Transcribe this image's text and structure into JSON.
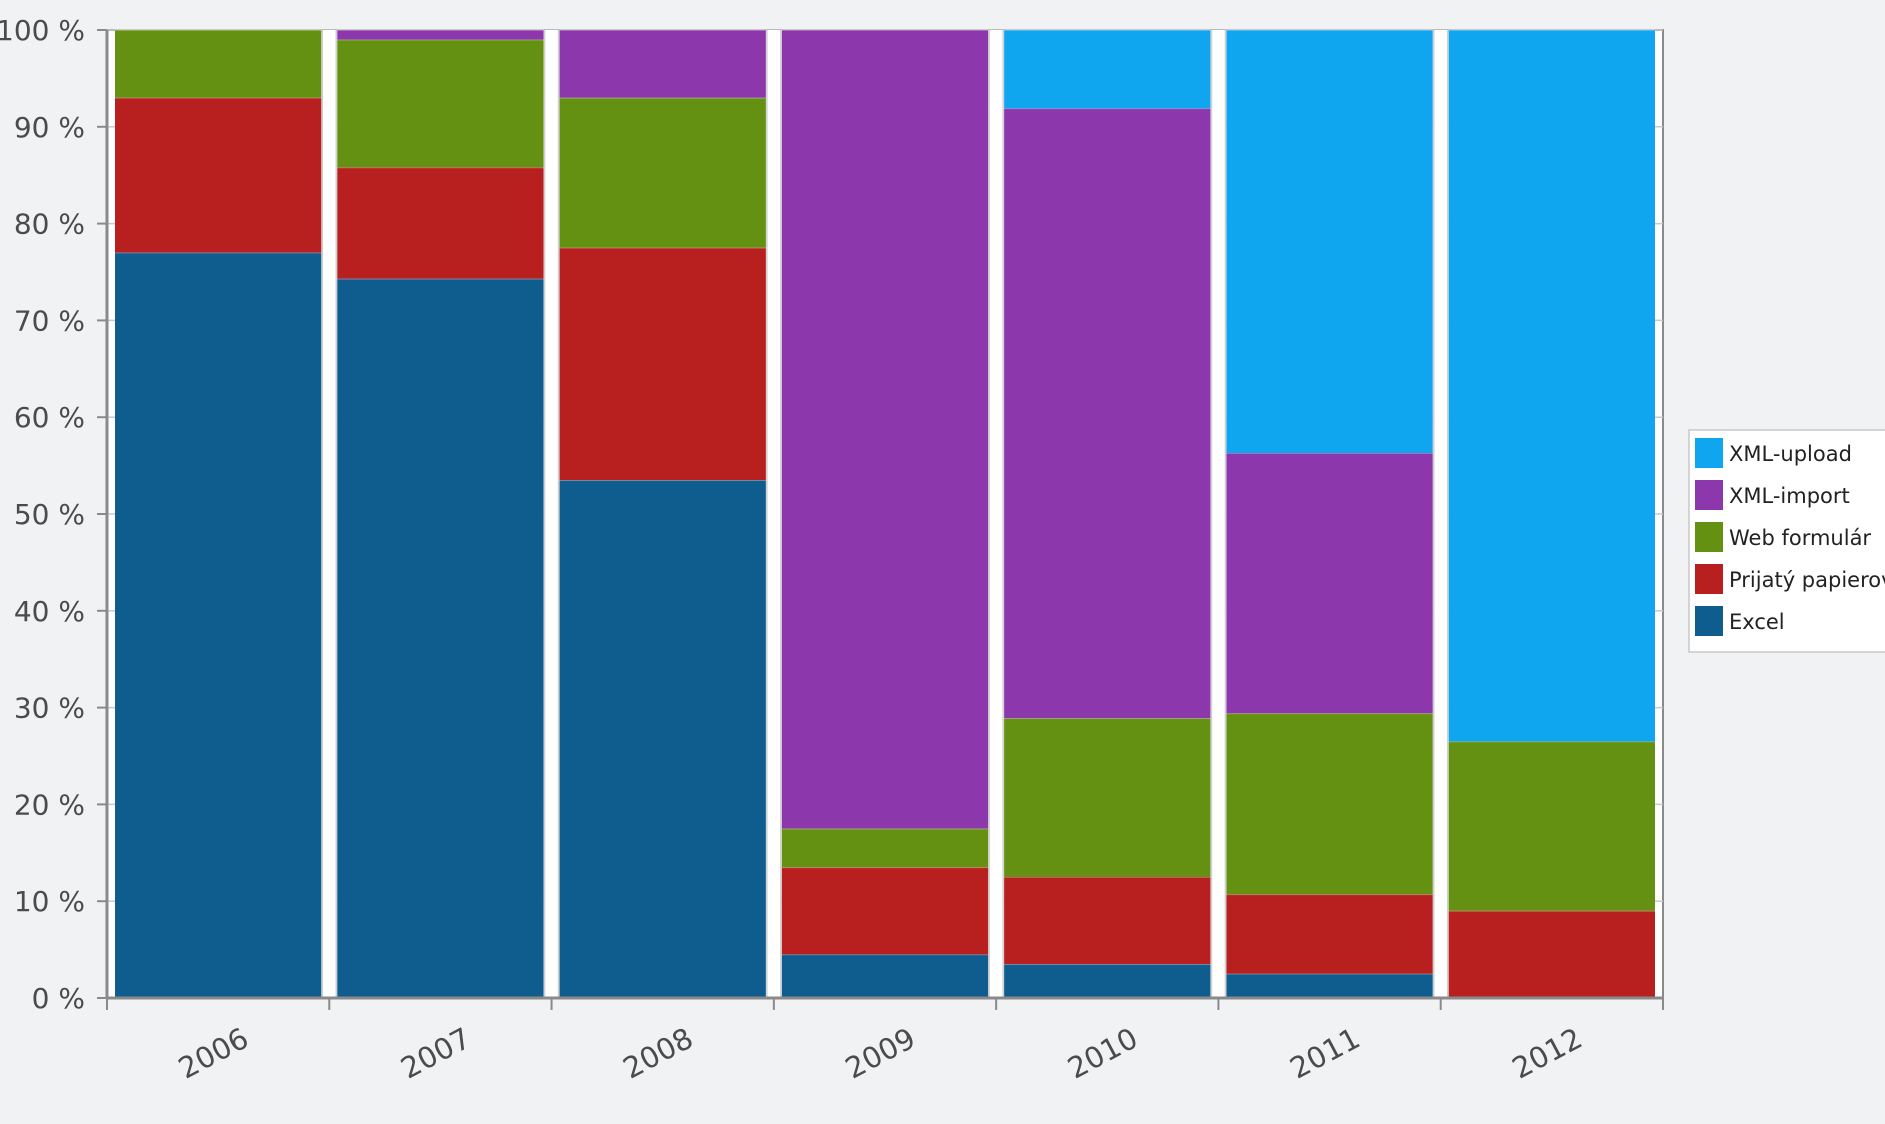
{
  "chart_data": {
    "type": "bar",
    "stacked": true,
    "normalized": true,
    "categories": [
      "2006",
      "2007",
      "2008",
      "2009",
      "2010",
      "2011",
      "2012"
    ],
    "y_ticks": [
      "0 %",
      "10 %",
      "20 %",
      "30 %",
      "40 %",
      "50 %",
      "60 %",
      "70 %",
      "80 %",
      "90 %",
      "100 %"
    ],
    "ylim": [
      0,
      100
    ],
    "grid": true,
    "legend_position": "right",
    "series": [
      {
        "name": "Excel",
        "color": "#0f5c8e",
        "values": [
          77,
          74.3,
          53.5,
          4.5,
          3.5,
          2.5,
          0
        ]
      },
      {
        "name": "Prijatý papierovo",
        "color": "#b81f1f",
        "values": [
          16,
          11.5,
          24,
          9,
          9,
          8.2,
          9
        ]
      },
      {
        "name": "Web formulár",
        "color": "#659112",
        "values": [
          7,
          13.2,
          15.5,
          4,
          16.4,
          18.7,
          17.5
        ]
      },
      {
        "name": "XML-import",
        "color": "#8c37ab",
        "values": [
          0,
          1,
          7,
          82.5,
          63,
          26.9,
          0
        ]
      },
      {
        "name": "XML-upload",
        "color": "#10a5ef",
        "values": [
          0,
          0,
          0,
          0,
          8.1,
          43.7,
          73.5
        ]
      }
    ],
    "legend_order": [
      "XML-upload",
      "XML-import",
      "Web formulár",
      "Prijatý papierovo",
      "Excel"
    ]
  }
}
